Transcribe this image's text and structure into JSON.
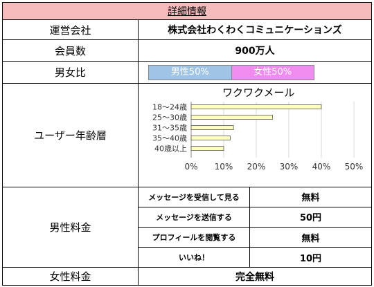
{
  "header": {
    "title": "詳細情報"
  },
  "rows": {
    "company": {
      "label": "運営会社",
      "value": "株式会社わくわくコミュニケーションズ"
    },
    "members": {
      "label": "会員数",
      "value": "900万人"
    },
    "ratio": {
      "label": "男女比",
      "male": "男性50%",
      "female": "女性50%",
      "male_share": 50,
      "male_color": "#9fc4e6",
      "female_color": "#f08cf0"
    },
    "age": {
      "label": "ユーザー年齢層",
      "chart_title": "ワクワクメール"
    },
    "male_fee": {
      "label": "男性料金",
      "items": [
        {
          "service": "メッセージを受信して見る",
          "price": "無料"
        },
        {
          "service": "メッセージを送信する",
          "price": "50円"
        },
        {
          "service": "プロフィールを閲覧する",
          "price": "無料"
        },
        {
          "service": "いいね！",
          "price": "10円"
        }
      ]
    },
    "female_fee": {
      "label": "女性料金",
      "value": "完全無料"
    }
  },
  "chart_data": {
    "type": "bar",
    "orientation": "horizontal",
    "title": "ワクワクメール",
    "categories": [
      "18～24歳",
      "25～30歳",
      "31～35歳",
      "35～40歳",
      "40歳以上"
    ],
    "values": [
      40,
      25,
      13,
      12,
      10
    ],
    "xlim": [
      0,
      50
    ],
    "xticks": [
      "0%",
      "10%",
      "20%",
      "30%",
      "40%",
      "50%"
    ],
    "grid": true,
    "bar_color": "#ffffc0"
  }
}
